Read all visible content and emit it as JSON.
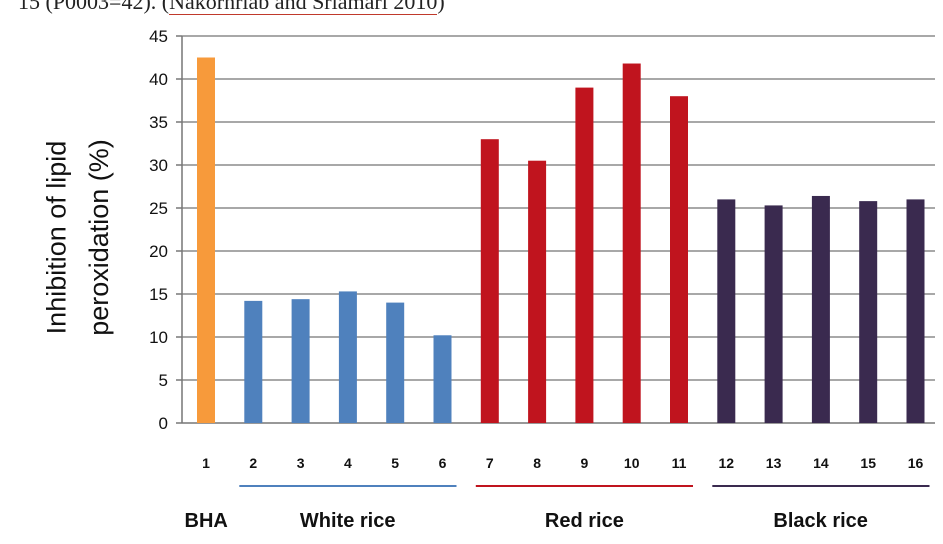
{
  "caption": {
    "prefix": "15 (P0003=42). (",
    "citation": "Nakornriab and Sriamari 2010",
    "suffix": ")"
  },
  "colors": {
    "bha": "#F79A3B",
    "white_rice": "#4F81BD",
    "red_rice": "#C0141E",
    "black_rice": "#3A2A4F",
    "axis": "#777777",
    "grid": "#8c8c8c"
  },
  "chart_data": {
    "type": "bar",
    "title": "",
    "xlabel": "",
    "ylabel_lines": [
      "Inhibition of lipid",
      "peroxidation (%)"
    ],
    "ylim": [
      0,
      45
    ],
    "yticks": [
      "0",
      "5",
      "10",
      "15",
      "20",
      "25",
      "30",
      "35",
      "40",
      "45"
    ],
    "grid": true,
    "categories": [
      "1",
      "2",
      "3",
      "4",
      "5",
      "6",
      "7",
      "8",
      "9",
      "10",
      "11",
      "12",
      "13",
      "14",
      "15",
      "16"
    ],
    "values": [
      42.5,
      14.2,
      14.4,
      15.3,
      14.0,
      10.2,
      33.0,
      30.5,
      39.0,
      41.8,
      38.0,
      26.0,
      25.3,
      26.4,
      25.8,
      26.0
    ],
    "groups": [
      {
        "label": "BHA",
        "range": [
          1,
          1
        ],
        "color_key": "bha",
        "underline": false
      },
      {
        "label": "White rice",
        "range": [
          2,
          6
        ],
        "color_key": "white_rice",
        "underline": true
      },
      {
        "label": "Red rice",
        "range": [
          7,
          11
        ],
        "color_key": "red_rice",
        "underline": true
      },
      {
        "label": "Black rice",
        "range": [
          12,
          16
        ],
        "color_key": "black_rice",
        "underline": true
      }
    ]
  }
}
